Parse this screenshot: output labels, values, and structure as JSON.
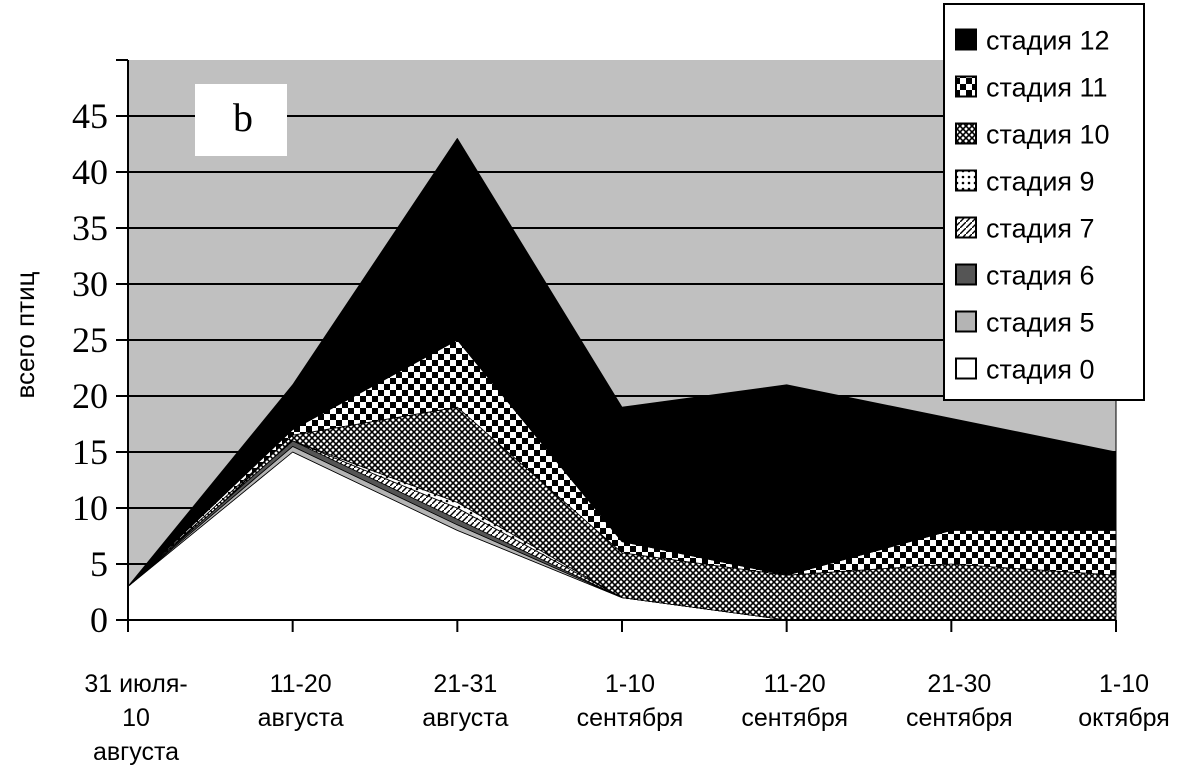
{
  "chart_data": {
    "type": "area",
    "stacked": true,
    "panel_label": "b",
    "ylabel": "всего птиц",
    "xlabel": "",
    "ylim": [
      0,
      50
    ],
    "yticks": [
      0,
      5,
      10,
      15,
      20,
      25,
      30,
      35,
      40,
      45
    ],
    "grid": true,
    "legend_position": "top-right",
    "categories": [
      [
        "31 июля-",
        "10",
        "августа"
      ],
      [
        "11-20",
        "августа"
      ],
      [
        "21-31",
        "августа"
      ],
      [
        "1-10",
        "сентября"
      ],
      [
        "11-20",
        "сентября"
      ],
      [
        "21-30",
        "сентября"
      ],
      [
        "1-10",
        "октября"
      ]
    ],
    "series": [
      {
        "name": "стадия 0",
        "values": [
          3,
          15,
          8,
          2,
          0,
          0,
          0
        ],
        "pattern": "white"
      },
      {
        "name": "стадия 5",
        "values": [
          0,
          0.5,
          0.5,
          0,
          0,
          0,
          0
        ],
        "pattern": "lightgray"
      },
      {
        "name": "стадия 6",
        "values": [
          0,
          0.5,
          0.5,
          0,
          0,
          0,
          0
        ],
        "pattern": "darkgray"
      },
      {
        "name": "стадия 7",
        "values": [
          0,
          0,
          1,
          0,
          0,
          0,
          0
        ],
        "pattern": "diagonal"
      },
      {
        "name": "стадия 9",
        "values": [
          0,
          0,
          0.5,
          0,
          0,
          0,
          0
        ],
        "pattern": "dots"
      },
      {
        "name": "стадия 10",
        "values": [
          0,
          0.5,
          8.5,
          4,
          4,
          5,
          4
        ],
        "pattern": "crosshatch"
      },
      {
        "name": "стадия 11",
        "values": [
          0,
          0.5,
          6,
          1,
          0,
          3,
          4
        ],
        "pattern": "checker"
      },
      {
        "name": "стадия 12",
        "values": [
          0,
          4,
          18,
          12,
          17,
          10,
          7
        ],
        "pattern": "black"
      }
    ],
    "colors": {
      "plot_background": "#c0c0c0",
      "grid": "#000000"
    }
  }
}
